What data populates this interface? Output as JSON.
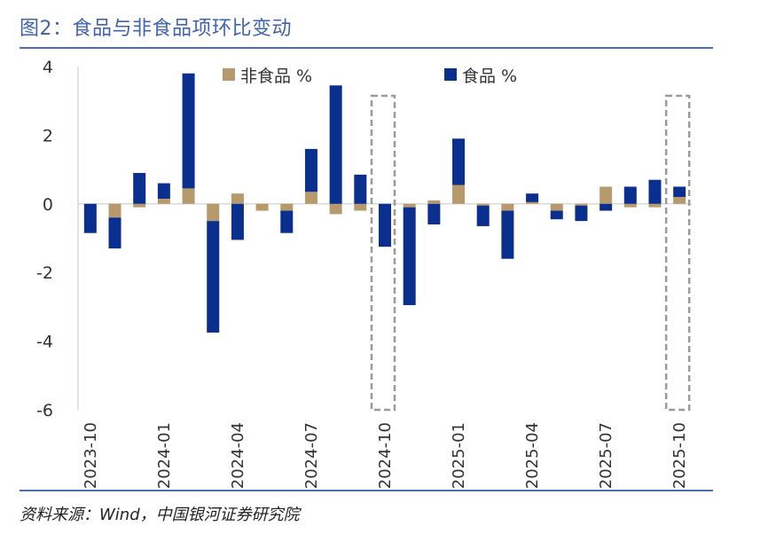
{
  "header": {
    "title": "图2：食品与非食品项环比变动"
  },
  "footer": {
    "source": "资料来源：Wind，中国银河证券研究院"
  },
  "colors": {
    "food": "#0a2f8f",
    "nonfood": "#b79a6c",
    "rule": "#4a6fb5",
    "highlight_box": "#9a9a9a"
  },
  "chart_data": {
    "type": "bar",
    "stacked": true,
    "title": "食品与非食品项环比变动",
    "xlabel": "",
    "ylabel": "",
    "ylim": [
      -6,
      4
    ],
    "yticks": [
      4,
      2,
      0,
      -2,
      -4,
      -6
    ],
    "grid": false,
    "legend": [
      {
        "key": "nonfood",
        "label": "非食品 %"
      },
      {
        "key": "food",
        "label": "食品 %"
      }
    ],
    "categories": [
      "2023-10",
      "2023-11",
      "2023-12",
      "2024-01",
      "2024-02",
      "2024-03",
      "2024-04",
      "2024-05",
      "2024-06",
      "2024-07",
      "2024-08",
      "2024-09",
      "2024-10",
      "2024-11",
      "2024-12",
      "2025-01",
      "2025-02",
      "2025-03",
      "2025-04",
      "2025-05",
      "2025-06",
      "2025-07",
      "2025-08",
      "2025-09",
      "2025-10"
    ],
    "x_tick_labels": [
      "2023-10",
      "2024-01",
      "2024-04",
      "2024-07",
      "2024-10",
      "2025-01",
      "2025-04",
      "2025-07",
      "2025-10"
    ],
    "series": [
      {
        "key": "nonfood",
        "name": "非食品 %",
        "values": [
          0.0,
          -0.4,
          -0.1,
          0.15,
          0.45,
          -0.5,
          0.3,
          -0.2,
          -0.2,
          0.35,
          -0.3,
          -0.2,
          0.0,
          -0.1,
          0.1,
          0.55,
          -0.05,
          -0.2,
          0.05,
          -0.2,
          -0.05,
          0.5,
          -0.1,
          -0.1,
          0.2
        ]
      },
      {
        "key": "food",
        "name": "食品 %",
        "values": [
          -0.85,
          -0.9,
          0.9,
          0.45,
          3.35,
          -3.25,
          -1.05,
          0.0,
          -0.65,
          1.25,
          3.45,
          0.85,
          -1.25,
          -2.85,
          -0.6,
          1.35,
          -0.6,
          -1.4,
          0.25,
          -0.25,
          -0.45,
          -0.2,
          0.5,
          0.7,
          0.3
        ]
      }
    ],
    "highlighted_categories": [
      "2024-10",
      "2025-10"
    ]
  }
}
